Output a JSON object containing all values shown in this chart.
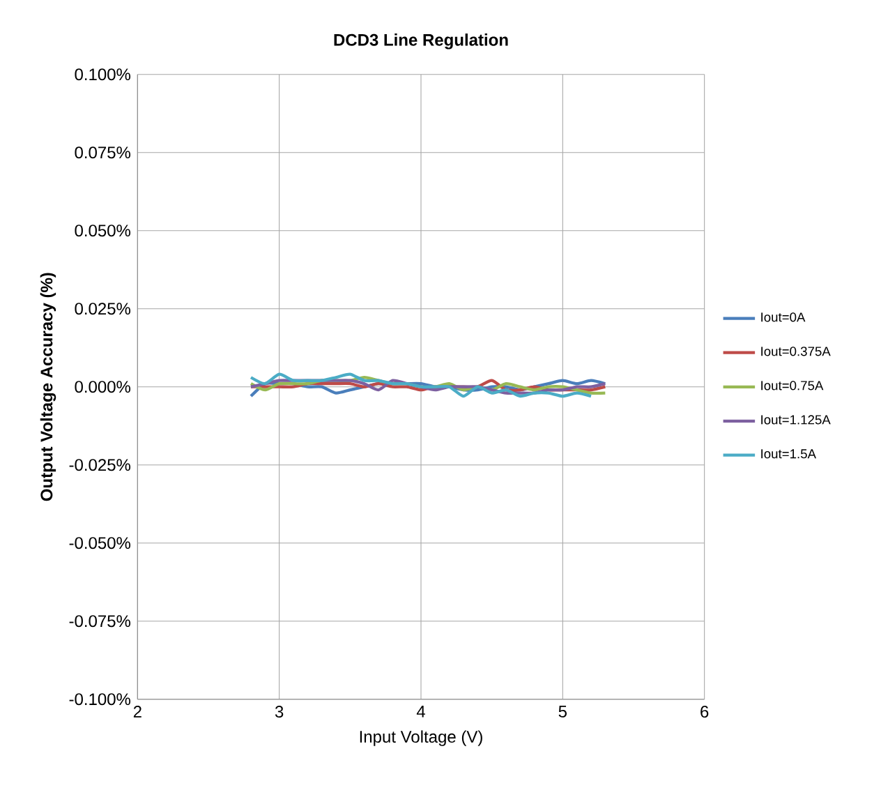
{
  "chart_data": {
    "type": "line",
    "title": "DCD3 Line Regulation",
    "xlabel": "Input Voltage (V)",
    "ylabel": "Output Voltage Accuracy (%)",
    "x": [
      2.8,
      2.9,
      3.0,
      3.1,
      3.2,
      3.3,
      3.4,
      3.5,
      3.6,
      3.7,
      3.8,
      3.9,
      4.0,
      4.1,
      4.2,
      4.3,
      4.4,
      4.5,
      4.6,
      4.7,
      4.8,
      4.9,
      5.0,
      5.1,
      5.2,
      5.3
    ],
    "series": [
      {
        "name": "Iout=0A",
        "color": "#4a7ebb",
        "values": [
          -0.003,
          0.001,
          0.001,
          0.001,
          0.0,
          0.0,
          -0.002,
          -0.001,
          0.0,
          0.001,
          0.001,
          0.001,
          0.001,
          0.0,
          0.0,
          -0.001,
          -0.001,
          0.0,
          0.0,
          -0.001,
          0.0,
          0.001,
          0.002,
          0.001,
          0.002,
          0.001
        ]
      },
      {
        "name": "Iout=0.375A",
        "color": "#be4b48",
        "values": [
          0.0,
          0.0,
          0.0,
          0.0,
          0.001,
          0.001,
          0.001,
          0.001,
          0.0,
          0.001,
          0.0,
          0.0,
          -0.001,
          0.0,
          0.0,
          0.0,
          0.0,
          0.002,
          -0.001,
          -0.001,
          0.0,
          -0.001,
          -0.001,
          -0.001,
          -0.001,
          0.0
        ]
      },
      {
        "name": "Iout=0.75A",
        "color": "#98b954",
        "values": [
          0.001,
          -0.001,
          0.001,
          0.001,
          0.001,
          0.002,
          0.002,
          0.002,
          0.003,
          0.002,
          0.001,
          0.001,
          0.0,
          0.0,
          0.001,
          -0.001,
          0.0,
          -0.001,
          0.001,
          0.0,
          -0.001,
          0.0,
          0.0,
          -0.001,
          -0.002,
          -0.002
        ]
      },
      {
        "name": "Iout=1.125A",
        "color": "#7d60a0",
        "values": [
          0.0,
          0.001,
          0.002,
          0.002,
          0.002,
          0.002,
          0.002,
          0.002,
          0.001,
          -0.001,
          0.002,
          0.001,
          0.0,
          -0.001,
          0.0,
          0.0,
          0.0,
          -0.001,
          -0.002,
          -0.002,
          -0.002,
          -0.001,
          -0.001,
          0.0,
          0.0,
          0.001
        ]
      },
      {
        "name": "Iout=1.5A",
        "color": "#4bacc6",
        "values": [
          0.003,
          0.001,
          0.004,
          0.002,
          0.002,
          0.002,
          0.003,
          0.004,
          0.002,
          0.002,
          0.001,
          0.001,
          0.0,
          0.0,
          0.0,
          -0.003,
          0.0,
          -0.002,
          -0.001,
          -0.003,
          -0.002,
          -0.002,
          -0.003,
          -0.002,
          -0.003,
          null
        ]
      }
    ],
    "xlim": [
      2,
      6
    ],
    "xticks": [
      2,
      3,
      4,
      5,
      6
    ],
    "ylim": [
      -0.1,
      0.1
    ],
    "yticks": [
      {
        "value": -0.1,
        "label": "-0.100%"
      },
      {
        "value": -0.075,
        "label": "-0.075%"
      },
      {
        "value": -0.05,
        "label": "-0.050%"
      },
      {
        "value": -0.025,
        "label": "-0.025%"
      },
      {
        "value": 0,
        "label": "0.000%"
      },
      {
        "value": 0.025,
        "label": "0.025%"
      },
      {
        "value": 0.05,
        "label": "0.050%"
      },
      {
        "value": 0.075,
        "label": "0.075%"
      },
      {
        "value": 0.1,
        "label": "0.100%"
      }
    ],
    "grid": true,
    "legend": "right",
    "line_style": "solid",
    "marker": "none"
  }
}
